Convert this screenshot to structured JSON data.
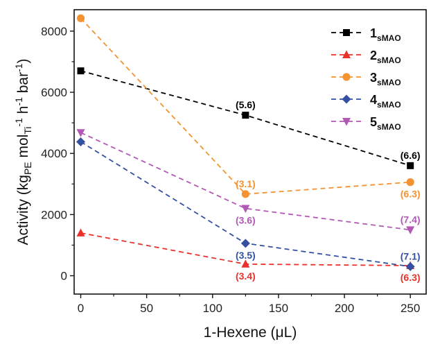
{
  "chart_data": {
    "type": "line",
    "title": "",
    "xlabel": "1-Hexene (μL)",
    "ylabel": "Activity (kgPE molTi-1 h-1 bar-1)",
    "ylabel_parts": [
      {
        "t": "Activity (kg",
        "s": "n"
      },
      {
        "t": "PE",
        "s": "sub"
      },
      {
        "t": " mol",
        "s": "n"
      },
      {
        "t": "Ti",
        "s": "sub"
      },
      {
        "t": "-1",
        "s": "sup"
      },
      {
        "t": " h",
        "s": "n"
      },
      {
        "t": "-1",
        "s": "sup"
      },
      {
        "t": " bar",
        "s": "n"
      },
      {
        "t": "-1",
        "s": "sup"
      },
      {
        "t": ")",
        "s": "n"
      }
    ],
    "xlim": [
      -5,
      262
    ],
    "ylim": [
      -600,
      8700
    ],
    "x_ticks": [
      0,
      50,
      100,
      150,
      200,
      250
    ],
    "x_tick_labels": [
      "0",
      "50",
      "100",
      "150",
      "200",
      "250"
    ],
    "y_ticks": [
      0,
      2000,
      4000,
      6000,
      8000
    ],
    "y_tick_labels": [
      "0",
      "2000",
      "4000",
      "6000",
      "8000"
    ],
    "legend_position": "top-right",
    "grid": false,
    "series": [
      {
        "name": "1sMAO",
        "name_main": "1",
        "name_sub": "sMAO",
        "color": "#000000",
        "marker": "square",
        "x": [
          0,
          125,
          250
        ],
        "y": [
          6700,
          5250,
          3600
        ],
        "labels": [
          {
            "x": 125,
            "y": 5250,
            "text": "(5.6)",
            "pos": "above"
          },
          {
            "x": 250,
            "y": 3600,
            "text": "(6.6)",
            "pos": "above"
          }
        ]
      },
      {
        "name": "2sMAO",
        "name_main": "2",
        "name_sub": "sMAO",
        "color": "#e8322b",
        "marker": "triangle-up",
        "x": [
          0,
          125,
          250
        ],
        "y": [
          1400,
          380,
          330
        ],
        "labels": [
          {
            "x": 125,
            "y": 380,
            "text": "(3.4)",
            "pos": "below"
          },
          {
            "x": 250,
            "y": 330,
            "text": "(6.3)",
            "pos": "below"
          }
        ]
      },
      {
        "name": "3sMAO",
        "name_main": "3",
        "name_sub": "sMAO",
        "color": "#f39331",
        "marker": "circle",
        "x": [
          0,
          125,
          250
        ],
        "y": [
          8420,
          2670,
          3060
        ],
        "labels": [
          {
            "x": 125,
            "y": 2670,
            "text": "(3.1)",
            "pos": "above"
          },
          {
            "x": 250,
            "y": 3060,
            "text": "(6.3)",
            "pos": "below"
          }
        ]
      },
      {
        "name": "4sMAO",
        "name_main": "4",
        "name_sub": "sMAO",
        "color": "#3350a3",
        "marker": "diamond",
        "x": [
          0,
          125,
          250
        ],
        "y": [
          4380,
          1060,
          300
        ],
        "labels": [
          {
            "x": 125,
            "y": 1060,
            "text": "(3.5)",
            "pos": "below"
          },
          {
            "x": 250,
            "y": 300,
            "text": "(7.1)",
            "pos": "above"
          }
        ]
      },
      {
        "name": "5sMAO",
        "name_main": "5",
        "name_sub": "sMAO",
        "color": "#b258b5",
        "marker": "triangle-down",
        "x": [
          0,
          125,
          250
        ],
        "y": [
          4680,
          2200,
          1500
        ],
        "labels": [
          {
            "x": 125,
            "y": 2200,
            "text": "(3.6)",
            "pos": "below"
          },
          {
            "x": 250,
            "y": 1500,
            "text": "(7.4)",
            "pos": "above"
          }
        ]
      }
    ]
  }
}
